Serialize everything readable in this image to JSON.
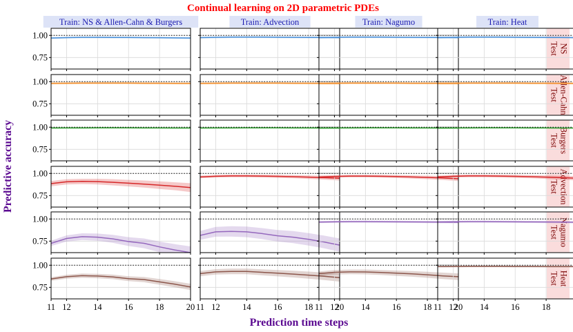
{
  "chart_data": {
    "type": "line",
    "title": "Continual learning on 2D parametric PDEs",
    "xlabel": "Prediction time steps",
    "ylabel": "Predictive accuracy",
    "column_titles": [
      "Train: NS & Allen-Cahn & Burgers",
      "Train: Advection",
      "Train: Nagumo",
      "Train: Heat"
    ],
    "row_labels": [
      [
        "Test",
        "NS"
      ],
      [
        "Test",
        "Allen-Cahn"
      ],
      [
        "Test",
        "Burgers"
      ],
      [
        "Test",
        "Advection"
      ],
      [
        "Test",
        "Nagumo"
      ],
      [
        "Test",
        "Heat"
      ]
    ],
    "x": [
      11,
      12,
      13,
      14,
      15,
      16,
      17,
      18,
      19,
      20
    ],
    "xlim": [
      11,
      20
    ],
    "ylim": [
      0.62,
      1.08
    ],
    "xticks": [
      11,
      12,
      14,
      16,
      18,
      20
    ],
    "yticks": [
      0.75,
      1.0
    ],
    "ytick_labels": [
      "0.75",
      "1.00"
    ],
    "reference_line": 1.0,
    "grid": true,
    "series_colors": [
      "#4a90d9",
      "#f28e2b",
      "#2ca02c",
      "#d62728",
      "#9467bd",
      "#8c564b"
    ],
    "label_colors": {
      "title": "#ff0000",
      "axis_label": "#5b0a91",
      "column_title_text": "#1a1ab0",
      "column_title_bg": "#dde3f7",
      "row_label_text": "#7a0000",
      "row_label_bg": "#fadcdc"
    },
    "panels": [
      [
        {
          "mean": [
            0.97,
            0.975,
            0.978,
            0.978,
            0.977,
            0.976,
            0.975,
            0.974,
            0.972,
            0.97
          ],
          "band": [
            0.01,
            0.01,
            0.01,
            0.01,
            0.01,
            0.01,
            0.01,
            0.01,
            0.01,
            0.01
          ]
        },
        {
          "mean": [
            0.975,
            0.978,
            0.98,
            0.98,
            0.98,
            0.979,
            0.978,
            0.977,
            0.976,
            0.975
          ],
          "band": [
            0.01,
            0.01,
            0.01,
            0.01,
            0.01,
            0.01,
            0.01,
            0.01,
            0.01,
            0.01
          ]
        },
        {
          "mean": [
            0.975,
            0.978,
            0.98,
            0.98,
            0.98,
            0.979,
            0.978,
            0.977,
            0.976,
            0.975
          ],
          "band": [
            0.01,
            0.01,
            0.01,
            0.01,
            0.01,
            0.01,
            0.01,
            0.01,
            0.01,
            0.01
          ]
        },
        {
          "mean": [
            0.975,
            0.978,
            0.98,
            0.98,
            0.98,
            0.979,
            0.978,
            0.977,
            0.976,
            0.975
          ],
          "band": [
            0.01,
            0.01,
            0.01,
            0.01,
            0.01,
            0.01,
            0.01,
            0.01,
            0.01,
            0.01
          ]
        }
      ],
      [
        {
          "mean": [
            0.98,
            0.982,
            0.983,
            0.983,
            0.983,
            0.983,
            0.982,
            0.982,
            0.981,
            0.98
          ],
          "band": [
            0.012,
            0.012,
            0.012,
            0.012,
            0.012,
            0.012,
            0.012,
            0.012,
            0.012,
            0.012
          ]
        },
        {
          "mean": [
            0.98,
            0.982,
            0.983,
            0.983,
            0.983,
            0.983,
            0.982,
            0.982,
            0.981,
            0.98
          ],
          "band": [
            0.012,
            0.012,
            0.012,
            0.012,
            0.012,
            0.012,
            0.012,
            0.012,
            0.012,
            0.012
          ]
        },
        {
          "mean": [
            0.98,
            0.982,
            0.983,
            0.983,
            0.983,
            0.983,
            0.982,
            0.982,
            0.981,
            0.98
          ],
          "band": [
            0.012,
            0.012,
            0.012,
            0.012,
            0.012,
            0.012,
            0.012,
            0.012,
            0.012,
            0.012
          ]
        },
        {
          "mean": [
            0.98,
            0.982,
            0.983,
            0.983,
            0.983,
            0.983,
            0.982,
            0.982,
            0.981,
            0.98
          ],
          "band": [
            0.012,
            0.012,
            0.012,
            0.012,
            0.012,
            0.012,
            0.012,
            0.012,
            0.012,
            0.012
          ]
        }
      ],
      [
        {
          "mean": [
            0.99,
            0.991,
            0.991,
            0.992,
            0.992,
            0.992,
            0.991,
            0.991,
            0.99,
            0.99
          ],
          "band": [
            0.006,
            0.006,
            0.006,
            0.006,
            0.006,
            0.006,
            0.006,
            0.006,
            0.006,
            0.006
          ]
        },
        {
          "mean": [
            0.99,
            0.991,
            0.991,
            0.992,
            0.992,
            0.992,
            0.991,
            0.991,
            0.99,
            0.99
          ],
          "band": [
            0.006,
            0.006,
            0.006,
            0.006,
            0.006,
            0.006,
            0.006,
            0.006,
            0.006,
            0.006
          ]
        },
        {
          "mean": [
            0.99,
            0.991,
            0.991,
            0.992,
            0.992,
            0.992,
            0.991,
            0.991,
            0.99,
            0.99
          ],
          "band": [
            0.006,
            0.006,
            0.006,
            0.006,
            0.006,
            0.006,
            0.006,
            0.006,
            0.006,
            0.006
          ]
        },
        {
          "mean": [
            0.99,
            0.991,
            0.991,
            0.992,
            0.992,
            0.992,
            0.991,
            0.991,
            0.99,
            0.99
          ],
          "band": [
            0.006,
            0.006,
            0.006,
            0.006,
            0.006,
            0.006,
            0.006,
            0.006,
            0.006,
            0.006
          ]
        }
      ],
      [
        {
          "mean": [
            0.885,
            0.905,
            0.91,
            0.908,
            0.9,
            0.89,
            0.88,
            0.868,
            0.855,
            0.84
          ],
          "band": [
            0.03,
            0.03,
            0.03,
            0.032,
            0.035,
            0.037,
            0.04,
            0.043,
            0.045,
            0.05
          ]
        },
        {
          "mean": [
            0.96,
            0.968,
            0.972,
            0.972,
            0.97,
            0.967,
            0.963,
            0.958,
            0.952,
            0.945
          ],
          "band": [
            0.015,
            0.015,
            0.015,
            0.015,
            0.016,
            0.017,
            0.018,
            0.02,
            0.022,
            0.025
          ]
        },
        {
          "mean": [
            0.958,
            0.966,
            0.97,
            0.97,
            0.968,
            0.965,
            0.96,
            0.955,
            0.948,
            0.94
          ],
          "band": [
            0.015,
            0.015,
            0.015,
            0.015,
            0.016,
            0.017,
            0.018,
            0.02,
            0.022,
            0.025
          ]
        },
        {
          "mean": [
            0.96,
            0.968,
            0.972,
            0.972,
            0.97,
            0.967,
            0.963,
            0.958,
            0.952,
            0.945
          ],
          "band": [
            0.015,
            0.015,
            0.015,
            0.015,
            0.016,
            0.017,
            0.018,
            0.02,
            0.022,
            0.025
          ]
        }
      ],
      [
        {
          "mean": [
            0.725,
            0.78,
            0.8,
            0.795,
            0.775,
            0.745,
            0.725,
            0.685,
            0.65,
            0.62
          ],
          "band": [
            0.03,
            0.035,
            0.038,
            0.04,
            0.045,
            0.05,
            0.055,
            0.06,
            0.065,
            0.07
          ]
        },
        {
          "mean": [
            0.815,
            0.855,
            0.86,
            0.855,
            0.835,
            0.81,
            0.795,
            0.77,
            0.74,
            0.705
          ],
          "band": [
            0.05,
            0.055,
            0.058,
            0.06,
            0.062,
            0.065,
            0.068,
            0.07,
            0.072,
            0.075
          ]
        },
        {
          "mean": [
            0.965,
            0.968,
            0.97,
            0.97,
            0.969,
            0.968,
            0.967,
            0.966,
            0.965,
            0.963
          ],
          "band": [
            0.012,
            0.012,
            0.012,
            0.012,
            0.012,
            0.012,
            0.012,
            0.012,
            0.012,
            0.012
          ]
        },
        {
          "mean": [
            0.965,
            0.968,
            0.97,
            0.97,
            0.969,
            0.968,
            0.967,
            0.966,
            0.965,
            0.963
          ],
          "band": [
            0.012,
            0.012,
            0.012,
            0.012,
            0.012,
            0.012,
            0.012,
            0.012,
            0.012,
            0.012
          ]
        }
      ],
      [
        {
          "mean": [
            0.845,
            0.87,
            0.882,
            0.878,
            0.868,
            0.848,
            0.838,
            0.812,
            0.785,
            0.755
          ],
          "band": [
            0.02,
            0.022,
            0.024,
            0.025,
            0.026,
            0.028,
            0.03,
            0.032,
            0.034,
            0.036
          ]
        },
        {
          "mean": [
            0.905,
            0.925,
            0.93,
            0.93,
            0.92,
            0.91,
            0.9,
            0.888,
            0.875,
            0.86
          ],
          "band": [
            0.03,
            0.03,
            0.032,
            0.032,
            0.034,
            0.036,
            0.038,
            0.04,
            0.042,
            0.045
          ]
        },
        {
          "mean": [
            0.905,
            0.92,
            0.925,
            0.924,
            0.918,
            0.91,
            0.902,
            0.892,
            0.88,
            0.87
          ],
          "band": [
            0.025,
            0.025,
            0.026,
            0.027,
            0.028,
            0.03,
            0.032,
            0.034,
            0.036,
            0.038
          ]
        },
        {
          "mean": [
            0.985,
            0.986,
            0.987,
            0.987,
            0.987,
            0.986,
            0.986,
            0.985,
            0.985,
            0.984
          ],
          "band": [
            0.008,
            0.008,
            0.008,
            0.008,
            0.008,
            0.008,
            0.008,
            0.008,
            0.008,
            0.008
          ]
        }
      ]
    ]
  }
}
